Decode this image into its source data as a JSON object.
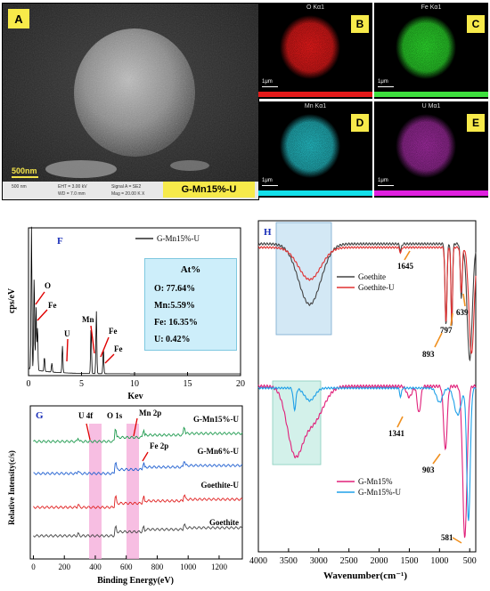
{
  "sem": {
    "letter": "A",
    "scale": "500nm",
    "sample": "G-Mn15%-U",
    "meta_scale": "500 nm",
    "meta_1": "EHT = 3.00 kV",
    "meta_2": "WD = 7.0 mm",
    "meta_3": "Signal A = SE2",
    "meta_4": "Mag = 20.00 K X"
  },
  "maps": [
    {
      "letter": "B",
      "element": "O Kα1",
      "color": "#e41a1a",
      "bar": "#e41a1a",
      "scale": "1μm"
    },
    {
      "letter": "C",
      "element": "Fe Kα1",
      "color": "#2bd42b",
      "bar": "#3ee03e",
      "scale": "1μm"
    },
    {
      "letter": "D",
      "element": "Mn Kα1",
      "color": "#23b8c0",
      "bar": "#12e0ea",
      "scale": "1μm"
    },
    {
      "letter": "E",
      "element": "U Mα1",
      "color": "#9a2a9a",
      "bar": "#e020e0",
      "scale": "1μm"
    }
  ],
  "eds_chart": {
    "panel_letter": "F",
    "legend": "G-Mn15%-U",
    "ylabel": "cps/eV",
    "xlabel": "Kev",
    "xticks": [
      "0",
      "5",
      "10",
      "15",
      "20"
    ],
    "peaks": [
      "O",
      "Fe",
      "U",
      "Mn",
      "Fe",
      "Fe"
    ],
    "table_title": "At%",
    "table_rows": [
      "O: 77.64%",
      "Mn:5.59%",
      "Fe: 16.35%",
      "U: 0.42%"
    ]
  },
  "xps_chart": {
    "panel_letter": "G",
    "ylabel": "Relative Intensity(c/s)",
    "xlabel": "Binding Energy(eV)",
    "xticks": [
      "0",
      "200",
      "400",
      "600",
      "800",
      "1000",
      "1200"
    ],
    "peak_labels": [
      "U 4f",
      "O 1s",
      "Mn 2p",
      "Fe 2p"
    ],
    "series": [
      {
        "name": "G-Mn15%-U",
        "color": "#1e9a4e"
      },
      {
        "name": "G-Mn6%-U",
        "color": "#1f5fd0"
      },
      {
        "name": "Goethite-U",
        "color": "#e02020"
      },
      {
        "name": "Goethite",
        "color": "#444444"
      }
    ]
  },
  "ftir_chart": {
    "panel_letter": "H",
    "xlabel": "Wavenumber(cm⁻¹)",
    "xticks": [
      "4000",
      "3500",
      "3000",
      "2500",
      "2000",
      "1500",
      "1000",
      "500"
    ],
    "legend_top": [
      {
        "name": "Goethite",
        "color": "#444444"
      },
      {
        "name": "Goethite-U",
        "color": "#e03030"
      }
    ],
    "legend_bottom": [
      {
        "name": "G-Mn15%",
        "color": "#e0207a"
      },
      {
        "name": "G-Mn15%-U",
        "color": "#1ea0e8"
      }
    ],
    "annotations": [
      "1645",
      "893",
      "797",
      "639",
      "1341",
      "903",
      "581"
    ]
  }
}
